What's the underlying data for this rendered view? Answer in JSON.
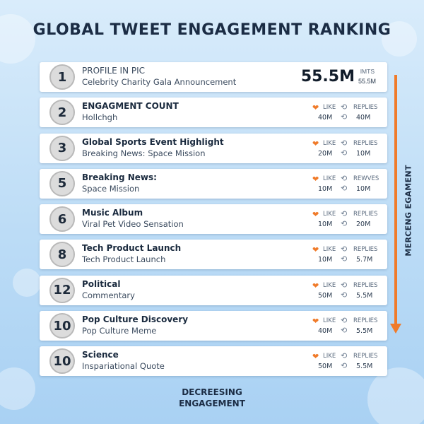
{
  "title": "GLOBAL TWEET ENGAGEMENT RANKING",
  "side_label": "MERCENG EGAMENT",
  "bottom_label_line1": "DECREESING",
  "bottom_label_line2": "ENGAGEMENT",
  "accent_color": "#f07b2a",
  "icons": {
    "like": "heart-icon",
    "reply": "reply-icon"
  },
  "top_row": {
    "rank": "1",
    "line1": "PROFILE IN PIC",
    "line2": "Celebrity Charity Gala Announcement",
    "big_value": "55.5M",
    "unit": "IMTS",
    "unit_value": "55.5M"
  },
  "rows": [
    {
      "rank": "2",
      "line1": "ENGAGMENT COUNT",
      "line2": "Hollchgh",
      "like_label": "LIKE",
      "reply_label": "REPLIES",
      "likes": "40M",
      "replies": "40M"
    },
    {
      "rank": "3",
      "line1": "Global Sports Event Highlight",
      "line2": "Breaking News: Space Mission",
      "like_label": "LIKE",
      "reply_label": "REPLIES",
      "likes": "20M",
      "replies": "10M"
    },
    {
      "rank": "5",
      "line1": "Breaking News:",
      "line2": "Space Mission",
      "like_label": "LIKE",
      "reply_label": "REWVES",
      "likes": "10M",
      "replies": "10M"
    },
    {
      "rank": "6",
      "line1": "Music Album",
      "line2": "Viral Pet Video Sensation",
      "like_label": "LIKE",
      "reply_label": "REPLIES",
      "likes": "10M",
      "replies": "20M"
    },
    {
      "rank": "8",
      "line1": "Tech Product Launch",
      "line2": "Tech Product Launch",
      "like_label": "LIKE",
      "reply_label": "REPLIES",
      "likes": "10M",
      "replies": "5.7M"
    },
    {
      "rank": "12",
      "line1": "Political",
      "line2": "Commentary",
      "like_label": "LIKE",
      "reply_label": "REPLIES",
      "likes": "50M",
      "replies": "5.5M"
    },
    {
      "rank": "10",
      "line1": "Pop Culture Discovery",
      "line2": "Pop Culture Meme",
      "like_label": "LIKE",
      "reply_label": "REPLIES",
      "likes": "40M",
      "replies": "5.5M"
    },
    {
      "rank": "10",
      "line1": "Science",
      "line2": "Inspariational Quote",
      "like_label": "LIKE",
      "reply_label": "REPLIES",
      "likes": "50M",
      "replies": "5.5M"
    }
  ]
}
